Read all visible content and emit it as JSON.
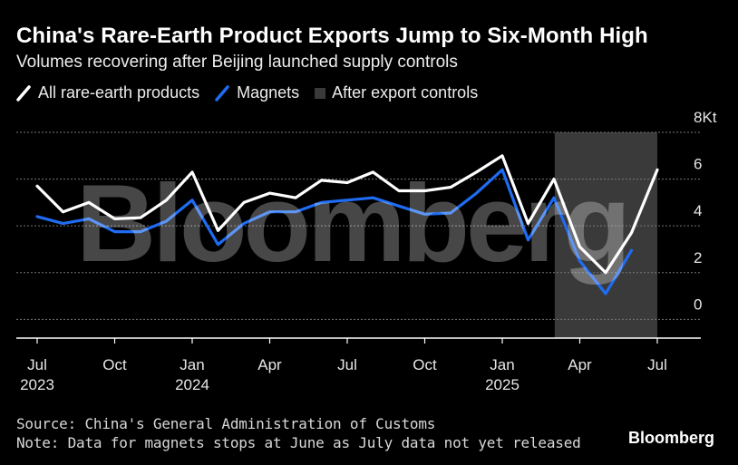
{
  "header": {
    "title": "China's Rare-Earth Product Exports Jump to Six-Month High",
    "subtitle": "Volumes recovering after Beijing launched supply controls"
  },
  "legend": [
    {
      "label": "All rare-earth products",
      "kind": "line",
      "color": "#ffffff"
    },
    {
      "label": "Magnets",
      "kind": "line",
      "color": "#1f6cf2"
    },
    {
      "label": "After export controls",
      "kind": "box",
      "color": "#3a3a3a"
    }
  ],
  "footer": {
    "source": "Source: China's General Administration of Customs",
    "note": "Note: Data for magnets stops at June as July data not yet released",
    "brand": "Bloomberg"
  },
  "watermark": "Bloomberg",
  "chart_data": {
    "type": "line",
    "x": [
      "2023-07",
      "2023-08",
      "2023-09",
      "2023-10",
      "2023-11",
      "2023-12",
      "2024-01",
      "2024-02",
      "2024-03",
      "2024-04",
      "2024-05",
      "2024-06",
      "2024-07",
      "2024-08",
      "2024-09",
      "2024-10",
      "2024-11",
      "2024-12",
      "2025-01",
      "2025-02",
      "2025-03",
      "2025-04",
      "2025-05",
      "2025-06",
      "2025-07"
    ],
    "series": [
      {
        "name": "All rare-earth products",
        "color": "#ffffff",
        "values": [
          5.7,
          4.6,
          5.0,
          4.3,
          4.35,
          5.1,
          6.3,
          3.8,
          5.0,
          5.4,
          5.2,
          5.95,
          5.85,
          6.3,
          5.5,
          5.5,
          5.65,
          6.3,
          7.0,
          4.1,
          6.0,
          3.1,
          2.0,
          3.7,
          6.4
        ]
      },
      {
        "name": "Magnets",
        "color": "#1f6cf2",
        "values": [
          4.4,
          4.1,
          4.3,
          3.75,
          3.75,
          4.2,
          5.1,
          3.2,
          4.1,
          4.6,
          4.6,
          5.0,
          5.1,
          5.2,
          4.85,
          4.5,
          4.55,
          5.4,
          6.4,
          3.4,
          5.2,
          2.5,
          1.1,
          2.95,
          null
        ]
      }
    ],
    "shaded_region": {
      "label": "After export controls",
      "from": "2025-04",
      "to": "2025-07"
    },
    "x_ticks": [
      {
        "x": "2023-07",
        "label": "Jul",
        "year": "2023"
      },
      {
        "x": "2023-10",
        "label": "Oct",
        "year": ""
      },
      {
        "x": "2024-01",
        "label": "Jan",
        "year": "2024"
      },
      {
        "x": "2024-04",
        "label": "Apr",
        "year": ""
      },
      {
        "x": "2024-07",
        "label": "Jul",
        "year": ""
      },
      {
        "x": "2024-10",
        "label": "Oct",
        "year": ""
      },
      {
        "x": "2025-01",
        "label": "Jan",
        "year": "2025"
      },
      {
        "x": "2025-04",
        "label": "Apr",
        "year": ""
      },
      {
        "x": "2025-07",
        "label": "Jul",
        "year": ""
      }
    ],
    "y_ticks": [
      {
        "value": 0,
        "label": "0"
      },
      {
        "value": 2,
        "label": "2"
      },
      {
        "value": 4,
        "label": "4"
      },
      {
        "value": 6,
        "label": "6"
      },
      {
        "value": 8,
        "label": "8Kt"
      }
    ],
    "ylim": [
      -0.8,
      8
    ],
    "grid": true,
    "legend_position": "top"
  }
}
